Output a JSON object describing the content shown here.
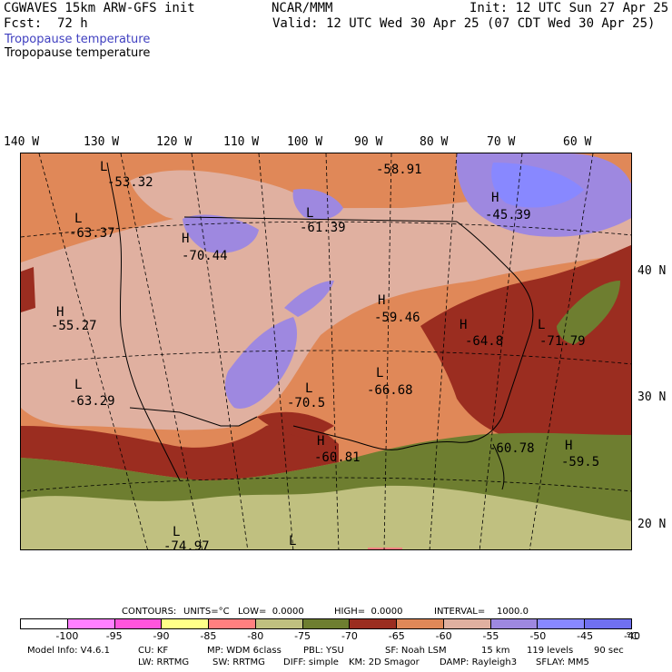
{
  "header": {
    "model": "CGWAVES 15km ARW-GFS init",
    "center": "NCAR/MMM",
    "init": "Init: 12 UTC Sun 27 Apr 25",
    "fcst_label": "Fcst:",
    "fcst_value": "72 h",
    "valid": "Valid: 12 UTC Wed 30 Apr 25 (07 CDT Wed 30 Apr 25)",
    "field_title": "Tropopause temperature",
    "field_subtitle": "Tropopause temperature"
  },
  "map": {
    "lon_labels": [
      "140 W",
      "130 W",
      "120 W",
      "110 W",
      "100 W",
      "90 W",
      "80 W",
      "70 W",
      "60 W"
    ],
    "lat_labels": [
      "40 N",
      "30 N",
      "20 N"
    ],
    "extrema": [
      {
        "letter": "L",
        "value": "-53.32"
      },
      {
        "letter": "L",
        "value": "-63.37"
      },
      {
        "letter": "H",
        "value": "-70.44"
      },
      {
        "letter": "L",
        "value": "-61.39"
      },
      {
        "letter": "",
        "value": "-58.91"
      },
      {
        "letter": "H",
        "value": "-45.39"
      },
      {
        "letter": "H",
        "value": "-55.27"
      },
      {
        "letter": "H",
        "value": "-59.46"
      },
      {
        "letter": "H",
        "value": "-64.8"
      },
      {
        "letter": "L",
        "value": "-71.79"
      },
      {
        "letter": "L",
        "value": "-63.29"
      },
      {
        "letter": "L",
        "value": "-70.5"
      },
      {
        "letter": "L",
        "value": "-66.68"
      },
      {
        "letter": "H",
        "value": "-60.81"
      },
      {
        "letter": "",
        "value": "-60.78"
      },
      {
        "letter": "H",
        "value": "-59.5"
      },
      {
        "letter": "L",
        "value": "-74.97"
      },
      {
        "letter": "L",
        "value": ""
      }
    ]
  },
  "contours_line": {
    "contours": "CONTOURS:",
    "units": "UNITS=°C",
    "low": "LOW=  0.0000",
    "high": "HIGH=  0.0000",
    "interval": "INTERVAL=    1000.0"
  },
  "colorbar": {
    "colors": [
      "#ffffff",
      "#ff80ff",
      "#ff55dd",
      "#ffff88",
      "#ff8080",
      "#c0c080",
      "#6e7e30",
      "#9b2d20",
      "#e08858",
      "#e0b0a0",
      "#9e88e0",
      "#8888ff",
      "#7070f0"
    ],
    "ticks": [
      "-100",
      "-95",
      "-90",
      "-85",
      "-80",
      "-75",
      "-70",
      "-65",
      "-60",
      "-55",
      "-50",
      "-45",
      "-40"
    ],
    "unit": "°C"
  },
  "footer": {
    "line1": [
      "Model Info: V4.6.1",
      "CU: KF",
      "MP: WDM 6class",
      "PBL: YSU",
      "SF: Noah LSM",
      "15 km",
      "119 levels",
      "90 sec"
    ],
    "line2": [
      "LW: RRTMG",
      "SW: RRTMG",
      "DIFF: simple",
      "KM: 2D Smagor",
      "DAMP: Rayleigh3",
      "SFLAY: MM5"
    ]
  }
}
